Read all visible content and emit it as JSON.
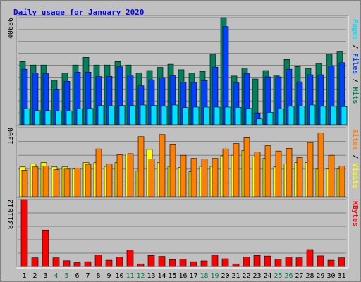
{
  "chart_data": {
    "type": "bar",
    "title": "Daily usage for January 2020",
    "title_color": "#0000ff",
    "categories": [
      "1",
      "2",
      "3",
      "4",
      "5",
      "6",
      "7",
      "8",
      "9",
      "10",
      "11",
      "12",
      "13",
      "14",
      "15",
      "16",
      "17",
      "18",
      "19",
      "20",
      "21",
      "22",
      "23",
      "24",
      "25",
      "26",
      "27",
      "28",
      "29",
      "30",
      "31"
    ],
    "weekend_days": [
      4,
      5,
      11,
      12,
      18,
      19,
      25,
      26
    ],
    "weekend_label_color": "#00804a",
    "panels": [
      {
        "id": "hits-files-pages",
        "ymax_label": "40686",
        "ylim": [
          0,
          40686
        ],
        "right_legend": [
          "Pages",
          "Files",
          "Hits"
        ],
        "series": [
          {
            "name": "Hits",
            "color": "#00805c",
            "values": [
              24000,
              22700,
              22700,
              16900,
              19600,
              22700,
              25600,
              22700,
              22700,
              24000,
              22700,
              19600,
              20600,
              21800,
              23000,
              20900,
              19600,
              20300,
              26800,
              40686,
              18500,
              21600,
              17400,
              20600,
              18800,
              24800,
              22100,
              21400,
              23300,
              26800,
              27700
            ]
          },
          {
            "name": "Files",
            "color": "#0040ff",
            "values": [
              21100,
              19700,
              19400,
              13500,
              16500,
              20000,
              20000,
              18300,
              18400,
              22000,
              18900,
              14800,
              17100,
              17900,
              18600,
              16200,
              16100,
              16800,
              21900,
              37300,
              15900,
              19400,
              4500,
              18200,
              18200,
              21100,
              16300,
              19000,
              19000,
              22400,
              23600
            ]
          },
          {
            "name": "Pages",
            "color": "#00e0ff",
            "values": [
              6100,
              5400,
              5400,
              5300,
              5300,
              6100,
              6200,
              7300,
              7200,
              7300,
              7300,
              7500,
              7300,
              7000,
              7500,
              6500,
              6700,
              6700,
              6700,
              6700,
              6600,
              6200,
              2200,
              4700,
              6100,
              7000,
              7100,
              7500,
              7000,
              7000,
              6900
            ]
          }
        ]
      },
      {
        "id": "visits-sites",
        "ymax_label": "1300",
        "ylim": [
          0,
          1300
        ],
        "right_legend": [
          "Sites",
          "Visits",
          ""
        ],
        "series": [
          {
            "name": "Visits",
            "color": "#ffff00",
            "values": [
              560,
              620,
              640,
              560,
              560,
              520,
              640,
              640,
              570,
              640,
              800,
              480,
              890,
              640,
              570,
              550,
              470,
              570,
              570,
              770,
              780,
              870,
              750,
              720,
              560,
              620,
              640,
              640,
              520,
              520,
              520
            ]
          },
          {
            "name": "Sites",
            "color": "#ff8000",
            "values": [
              500,
              560,
              580,
              510,
              520,
              540,
              610,
              900,
              620,
              790,
              810,
              1130,
              710,
              1170,
              990,
              780,
              720,
              710,
              720,
              900,
              1000,
              1110,
              840,
              960,
              860,
              910,
              740,
              1020,
              1200,
              780,
              580
            ]
          }
        ]
      },
      {
        "id": "kbytes",
        "ymax_label": "8311812",
        "ylim": [
          0,
          8311812
        ],
        "right_legend": [
          "KBytes",
          "",
          ""
        ],
        "series": [
          {
            "name": "KBytes",
            "color": "#ff0000",
            "values": [
              8311812,
              1080000,
              4530000,
              1080000,
              720000,
              480000,
              600000,
              1440000,
              780000,
              1200000,
              2050000,
              330000,
              1380000,
              1260000,
              840000,
              930000,
              600000,
              700000,
              1410000,
              960000,
              330000,
              1200000,
              1380000,
              1300000,
              900000,
              1160000,
              1080000,
              2100000,
              1320000,
              780000,
              1080000
            ]
          }
        ]
      }
    ]
  }
}
